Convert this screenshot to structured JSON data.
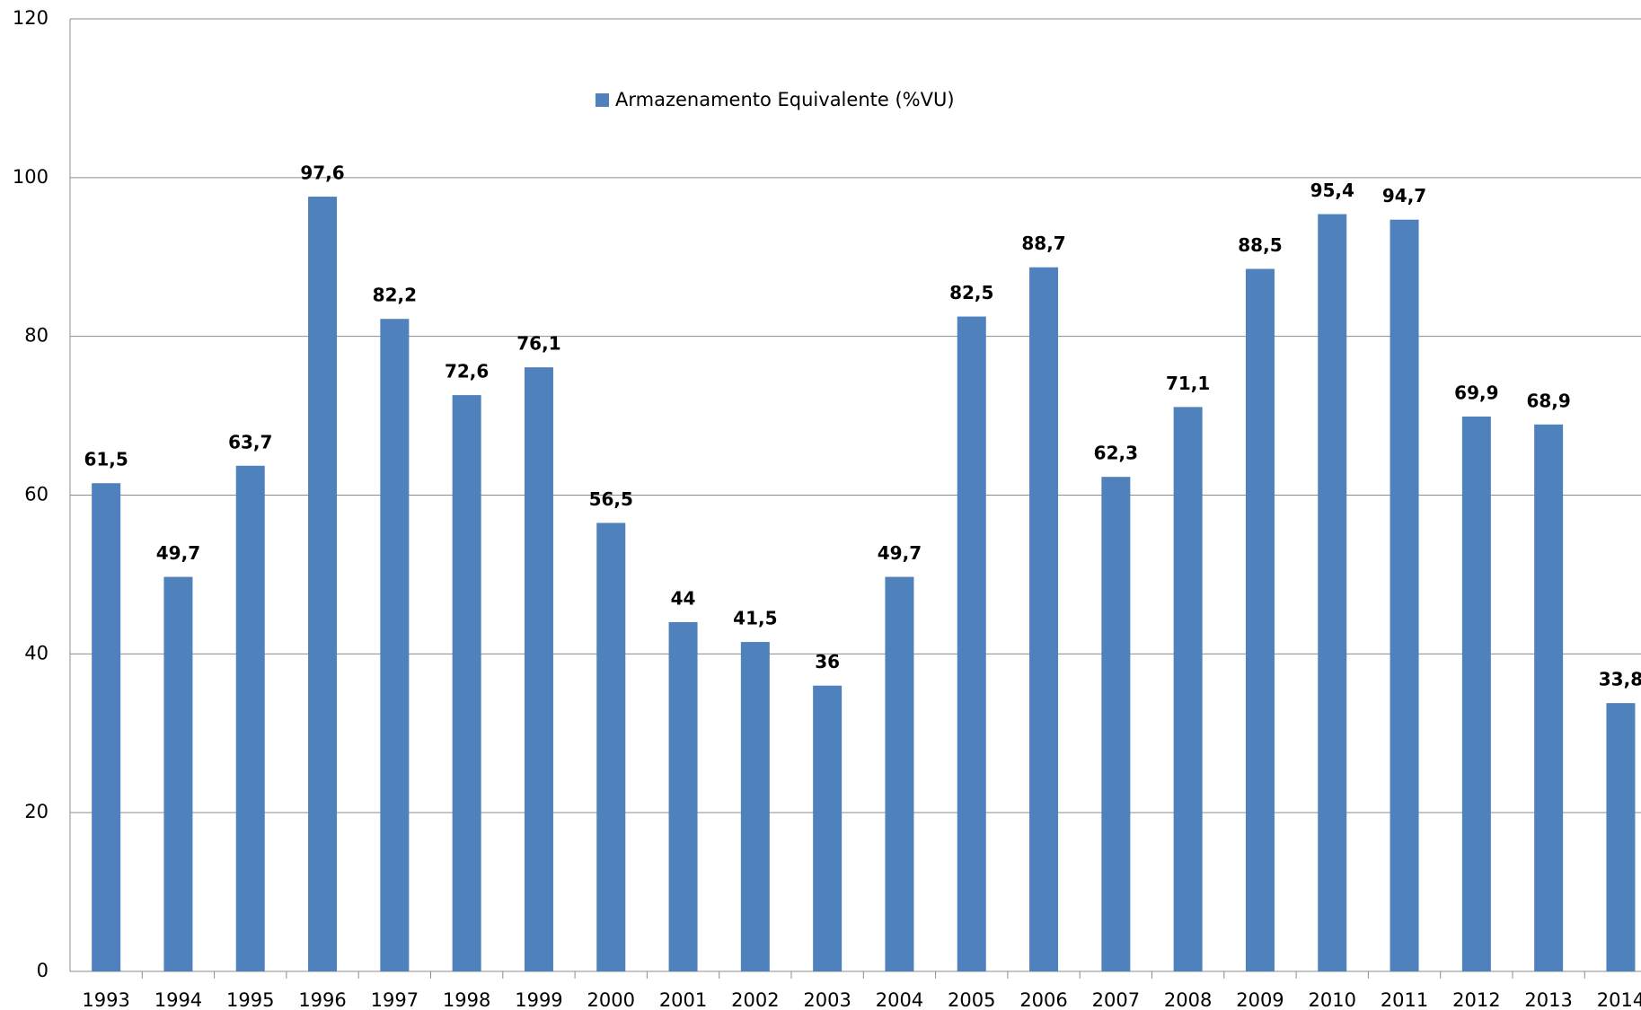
{
  "chart_data": {
    "type": "bar",
    "categories": [
      "1993",
      "1994",
      "1995",
      "1996",
      "1997",
      "1998",
      "1999",
      "2000",
      "2001",
      "2002",
      "2003",
      "2004",
      "2005",
      "2006",
      "2007",
      "2008",
      "2009",
      "2010",
      "2011",
      "2012",
      "2013",
      "2014"
    ],
    "series": [
      {
        "name": "Armazenamento Equivalente (%VU)",
        "color": "#4f81bd",
        "values": [
          61.5,
          49.7,
          63.7,
          97.6,
          82.2,
          72.6,
          76.1,
          56.5,
          44,
          41.5,
          36,
          49.7,
          82.5,
          88.7,
          62.3,
          71.1,
          88.5,
          95.4,
          94.7,
          69.9,
          68.9,
          33.8
        ],
        "value_labels": [
          "61,5",
          "49,7",
          "63,7",
          "97,6",
          "82,2",
          "72,6",
          "76,1",
          "56,5",
          "44",
          "41,5",
          "36",
          "49,7",
          "82,5",
          "88,7",
          "62,3",
          "71,1",
          "88,5",
          "95,4",
          "94,7",
          "69,9",
          "68,9",
          "33,8"
        ]
      }
    ],
    "ylim": [
      0,
      120
    ],
    "yticks": [
      0,
      20,
      40,
      60,
      80,
      100,
      120
    ],
    "grid": true,
    "legend": "top"
  }
}
